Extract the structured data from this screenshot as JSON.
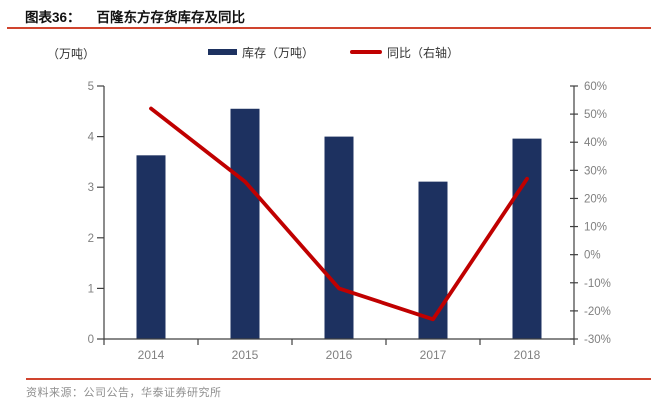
{
  "header": {
    "label": "图表36：",
    "title": "百隆东方存货库存及同比"
  },
  "axis_unit_label": "（万吨）",
  "legend": {
    "items": [
      {
        "label": "库存（万吨）",
        "swatch": "bar"
      },
      {
        "label": "同比（右轴）",
        "swatch": "line"
      }
    ]
  },
  "source_note": "资料来源：公司公告，华泰证券研究所",
  "colors": {
    "bar": "#1d3160",
    "line": "#c00000",
    "rule": "#d0442e",
    "axis": "#404040",
    "tick_label": "#808080",
    "legend_text": "#333333",
    "source_text": "#8f8f8f"
  },
  "chart_data": {
    "type": "bar",
    "subtype": "dual-axis bar + line",
    "title": "百隆东方存货库存及同比",
    "categories": [
      "2014",
      "2015",
      "2016",
      "2017",
      "2018"
    ],
    "series": [
      {
        "name": "库存（万吨）",
        "type": "bar",
        "axis": "left",
        "values": [
          3.63,
          4.55,
          4.0,
          3.11,
          3.96
        ]
      },
      {
        "name": "同比（右轴）",
        "type": "line",
        "axis": "right",
        "values": [
          52,
          26,
          -12,
          -23,
          27
        ]
      }
    ],
    "left_axis": {
      "min": 0,
      "max": 5,
      "step": 1,
      "label": "（万吨）"
    },
    "right_axis": {
      "min": -30,
      "max": 60,
      "step": 10,
      "suffix": "%"
    },
    "grid": false,
    "legend_position": "top"
  }
}
